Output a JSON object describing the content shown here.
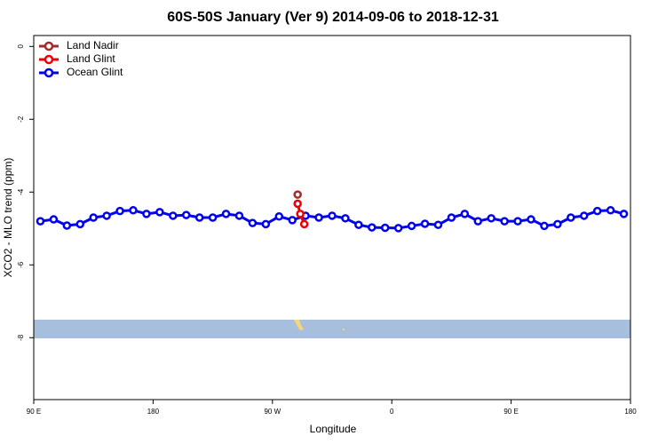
{
  "chart_data": {
    "type": "line",
    "title": "60S-50S January (Ver 9)   2014-09-06 to 2018-12-31",
    "x_label": "Longitude",
    "y_label": "XCO2 - MLO trend (ppm)",
    "xlim": [
      90,
      540
    ],
    "xticks": [
      {
        "value": 90,
        "label": "90 E"
      },
      180,
      {
        "value": 270,
        "label": "90 W"
      },
      {
        "value": 360,
        "label": "0"
      },
      {
        "value": 450,
        "label": "90 E"
      },
      {
        "value": 540,
        "label": "180"
      }
    ],
    "ylim": [
      -9.7,
      0.3
    ],
    "yticks": [
      0,
      -2,
      -4,
      -6,
      -8
    ],
    "legend": "top-left",
    "series": [
      {
        "name": "Land Nadir",
        "color": "#a52a2a",
        "x": [
          289
        ],
        "values": [
          -4.07
        ]
      },
      {
        "name": "Land Glint",
        "color": "#ee0000",
        "x": [
          289,
          291,
          294
        ],
        "values": [
          -4.32,
          -4.6,
          -4.88
        ]
      },
      {
        "name": "Ocean Glint",
        "color": "#0000ee",
        "x": [
          95,
          105,
          115,
          125,
          135,
          145,
          155,
          165,
          175,
          185,
          195,
          205,
          215,
          225,
          235,
          245,
          255,
          265,
          275,
          285,
          295,
          305,
          315,
          325,
          335,
          345,
          355,
          365,
          375,
          385,
          395,
          405,
          415,
          425,
          435,
          445,
          455,
          465,
          475,
          485,
          495,
          505,
          515,
          525,
          535
        ],
        "values": [
          -4.8,
          -4.75,
          -4.92,
          -4.88,
          -4.7,
          -4.65,
          -4.52,
          -4.5,
          -4.6,
          -4.55,
          -4.65,
          -4.63,
          -4.7,
          -4.7,
          -4.6,
          -4.65,
          -4.85,
          -4.88,
          -4.67,
          -4.77,
          -4.65,
          -4.7,
          -4.65,
          -4.72,
          -4.9,
          -4.97,
          -4.98,
          -4.99,
          -4.93,
          -4.87,
          -4.9,
          -4.7,
          -4.6,
          -4.8,
          -4.72,
          -4.8,
          -4.8,
          -4.75,
          -4.93,
          -4.88,
          -4.7,
          -4.65,
          -4.52,
          -4.5,
          -4.6
        ]
      }
    ]
  }
}
